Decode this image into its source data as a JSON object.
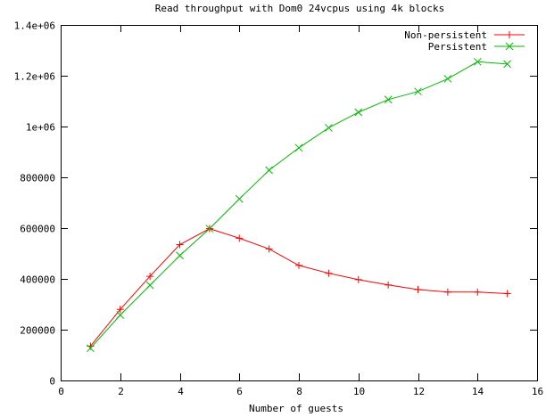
{
  "chart_data": {
    "type": "line",
    "title": "Read throughput with Dom0 24vcpus using 4k blocks",
    "xlabel": "Number of guests",
    "ylabel": "",
    "xlim": [
      0,
      16
    ],
    "ylim": [
      0,
      1400000
    ],
    "x_ticks": [
      0,
      2,
      4,
      6,
      8,
      10,
      12,
      14,
      16
    ],
    "y_ticks": [
      0,
      200000,
      400000,
      600000,
      800000,
      1000000,
      1200000,
      1400000
    ],
    "x_tick_labels": [
      "0",
      "2",
      "4",
      "6",
      "8",
      "10",
      "12",
      "14",
      "16"
    ],
    "y_tick_labels": [
      "0",
      "200000",
      "400000",
      "600000",
      "800000",
      "1e+06",
      "1.2e+06",
      "1.4e+06"
    ],
    "grid": false,
    "legend_position": "top-right",
    "series": [
      {
        "name": "Non-persistent",
        "color": "#ff0000",
        "marker": "plus",
        "x": [
          1,
          2,
          3,
          4,
          5,
          6,
          7,
          8,
          9,
          10,
          11,
          12,
          13,
          14,
          15
        ],
        "values": [
          135000,
          280000,
          410000,
          535000,
          598000,
          560000,
          518000,
          453000,
          422000,
          397000,
          376000,
          358000,
          348000,
          348000,
          342000
        ]
      },
      {
        "name": "Persistent",
        "color": "#00bb00",
        "marker": "cross",
        "x": [
          1,
          2,
          3,
          4,
          5,
          6,
          7,
          8,
          9,
          10,
          11,
          12,
          13,
          14,
          15
        ],
        "values": [
          127000,
          258000,
          375000,
          492000,
          598000,
          715000,
          828000,
          916000,
          995000,
          1056000,
          1106000,
          1138000,
          1188000,
          1255000,
          1246000
        ]
      }
    ]
  }
}
